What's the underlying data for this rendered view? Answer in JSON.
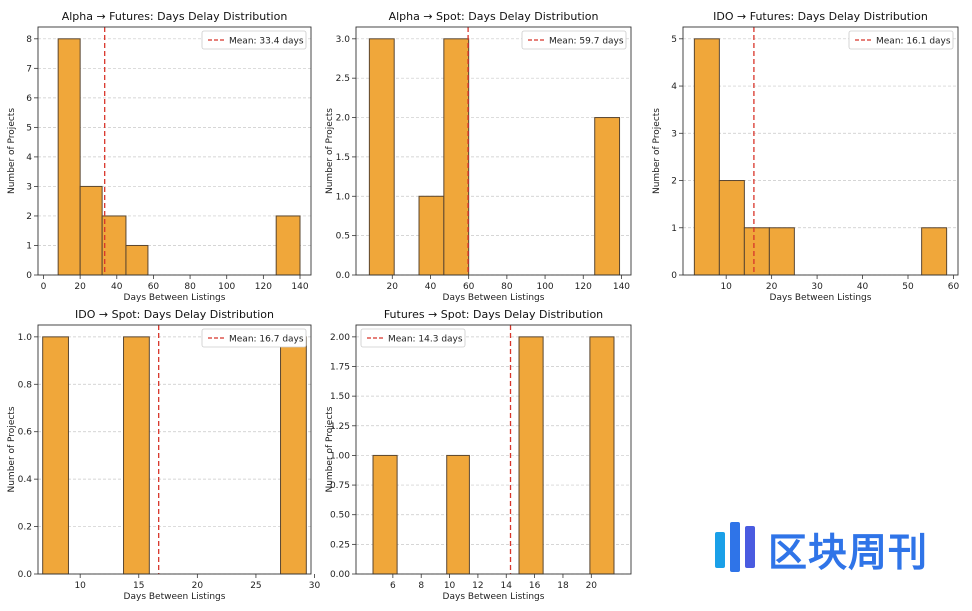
{
  "chart_data": [
    {
      "type": "bar",
      "title": "Alpha → Futures: Days Delay Distribution",
      "xlabel": "Days Between Listings",
      "ylabel": "Number of Projects",
      "bins": [
        [
          8,
          20
        ],
        [
          20,
          32
        ],
        [
          32,
          45
        ],
        [
          45,
          57
        ],
        [
          127,
          140
        ]
      ],
      "values": [
        8,
        3,
        2,
        1,
        2
      ],
      "mean": 33.4,
      "mean_label": "Mean: 33.4 days",
      "legend": "top-right",
      "xlim": [
        -3,
        146
      ],
      "ylim": [
        0,
        8.4
      ],
      "xticks": [
        0,
        20,
        40,
        60,
        80,
        100,
        120,
        140
      ],
      "yticks": [
        0,
        1,
        2,
        3,
        4,
        5,
        6,
        7,
        8
      ],
      "ytick_labels": [
        "0",
        "1",
        "2",
        "3",
        "4",
        "5",
        "6",
        "7",
        "8"
      ]
    },
    {
      "type": "bar",
      "title": "Alpha → Spot: Days Delay Distribution",
      "xlabel": "Days Between Listings",
      "ylabel": "Number of Projects",
      "bins": [
        [
          8,
          21
        ],
        [
          34,
          47
        ],
        [
          47,
          60
        ],
        [
          126,
          139
        ]
      ],
      "values": [
        3,
        1,
        3,
        2
      ],
      "mean": 59.7,
      "mean_label": "Mean: 59.7 days",
      "legend": "top-right",
      "xlim": [
        1,
        145
      ],
      "ylim": [
        0,
        3.15
      ],
      "xticks": [
        20,
        40,
        60,
        80,
        100,
        120,
        140
      ],
      "yticks": [
        0,
        0.5,
        1.0,
        1.5,
        2.0,
        2.5,
        3.0
      ],
      "ytick_labels": [
        "0.0",
        "0.5",
        "1.0",
        "1.5",
        "2.0",
        "2.5",
        "3.0"
      ]
    },
    {
      "type": "bar",
      "title": "IDO → Futures: Days Delay Distribution",
      "xlabel": "Days Between Listings",
      "ylabel": "Number of Projects",
      "bins": [
        [
          3,
          8.5
        ],
        [
          8.5,
          14
        ],
        [
          14,
          19.5
        ],
        [
          19.5,
          25
        ],
        [
          53,
          58.5
        ]
      ],
      "values": [
        5,
        2,
        1,
        1,
        1
      ],
      "mean": 16.1,
      "mean_label": "Mean: 16.1 days",
      "legend": "top-right",
      "xlim": [
        0.5,
        61
      ],
      "ylim": [
        0,
        5.25
      ],
      "xticks": [
        10,
        20,
        30,
        40,
        50,
        60
      ],
      "yticks": [
        0,
        1,
        2,
        3,
        4,
        5
      ],
      "ytick_labels": [
        "0",
        "1",
        "2",
        "3",
        "4",
        "5"
      ]
    },
    {
      "type": "bar",
      "title": "IDO → Spot: Days Delay Distribution",
      "xlabel": "Days Between Listings",
      "ylabel": "Number of Projects",
      "bins": [
        [
          6.8,
          9
        ],
        [
          13.7,
          15.9
        ],
        [
          27.1,
          29.3
        ]
      ],
      "values": [
        1,
        1,
        1
      ],
      "mean": 16.7,
      "mean_label": "Mean: 16.7 days",
      "legend": "top-right",
      "xlim": [
        6.4,
        29.7
      ],
      "ylim": [
        0,
        1.05
      ],
      "xticks": [
        10,
        15,
        20,
        25,
        30
      ],
      "yticks": [
        0,
        0.2,
        0.4,
        0.6,
        0.8,
        1.0
      ],
      "ytick_labels": [
        "0.0",
        "0.2",
        "0.4",
        "0.6",
        "0.8",
        "1.0"
      ]
    },
    {
      "type": "bar",
      "title": "Futures → Spot: Days Delay Distribution",
      "xlabel": "Days Between Listings",
      "ylabel": "Number of Projects",
      "bins": [
        [
          4.6,
          6.3
        ],
        [
          9.8,
          11.4
        ],
        [
          14.9,
          16.6
        ],
        [
          19.9,
          21.6
        ]
      ],
      "values": [
        1,
        1,
        2,
        2
      ],
      "mean": 14.3,
      "mean_label": "Mean: 14.3 days",
      "legend": "top-left",
      "xlim": [
        3.4,
        22.8
      ],
      "ylim": [
        0,
        2.1
      ],
      "xticks": [
        6,
        8,
        10,
        12,
        14,
        16,
        18,
        20
      ],
      "yticks": [
        0,
        0.25,
        0.5,
        0.75,
        1.0,
        1.25,
        1.5,
        1.75,
        2.0
      ],
      "ytick_labels": [
        "0.00",
        "0.25",
        "0.50",
        "0.75",
        "1.00",
        "1.25",
        "1.50",
        "1.75",
        "2.00"
      ]
    }
  ],
  "colors": {
    "bar_fill": "#f0a73a",
    "bar_edge": "#5a4630",
    "mean_line": "#d8352a",
    "grid": "#c8c8c8",
    "logo": "#2f74e8"
  },
  "logo": {
    "text": "区块周刊",
    "icon": "brand-logo-icon"
  }
}
